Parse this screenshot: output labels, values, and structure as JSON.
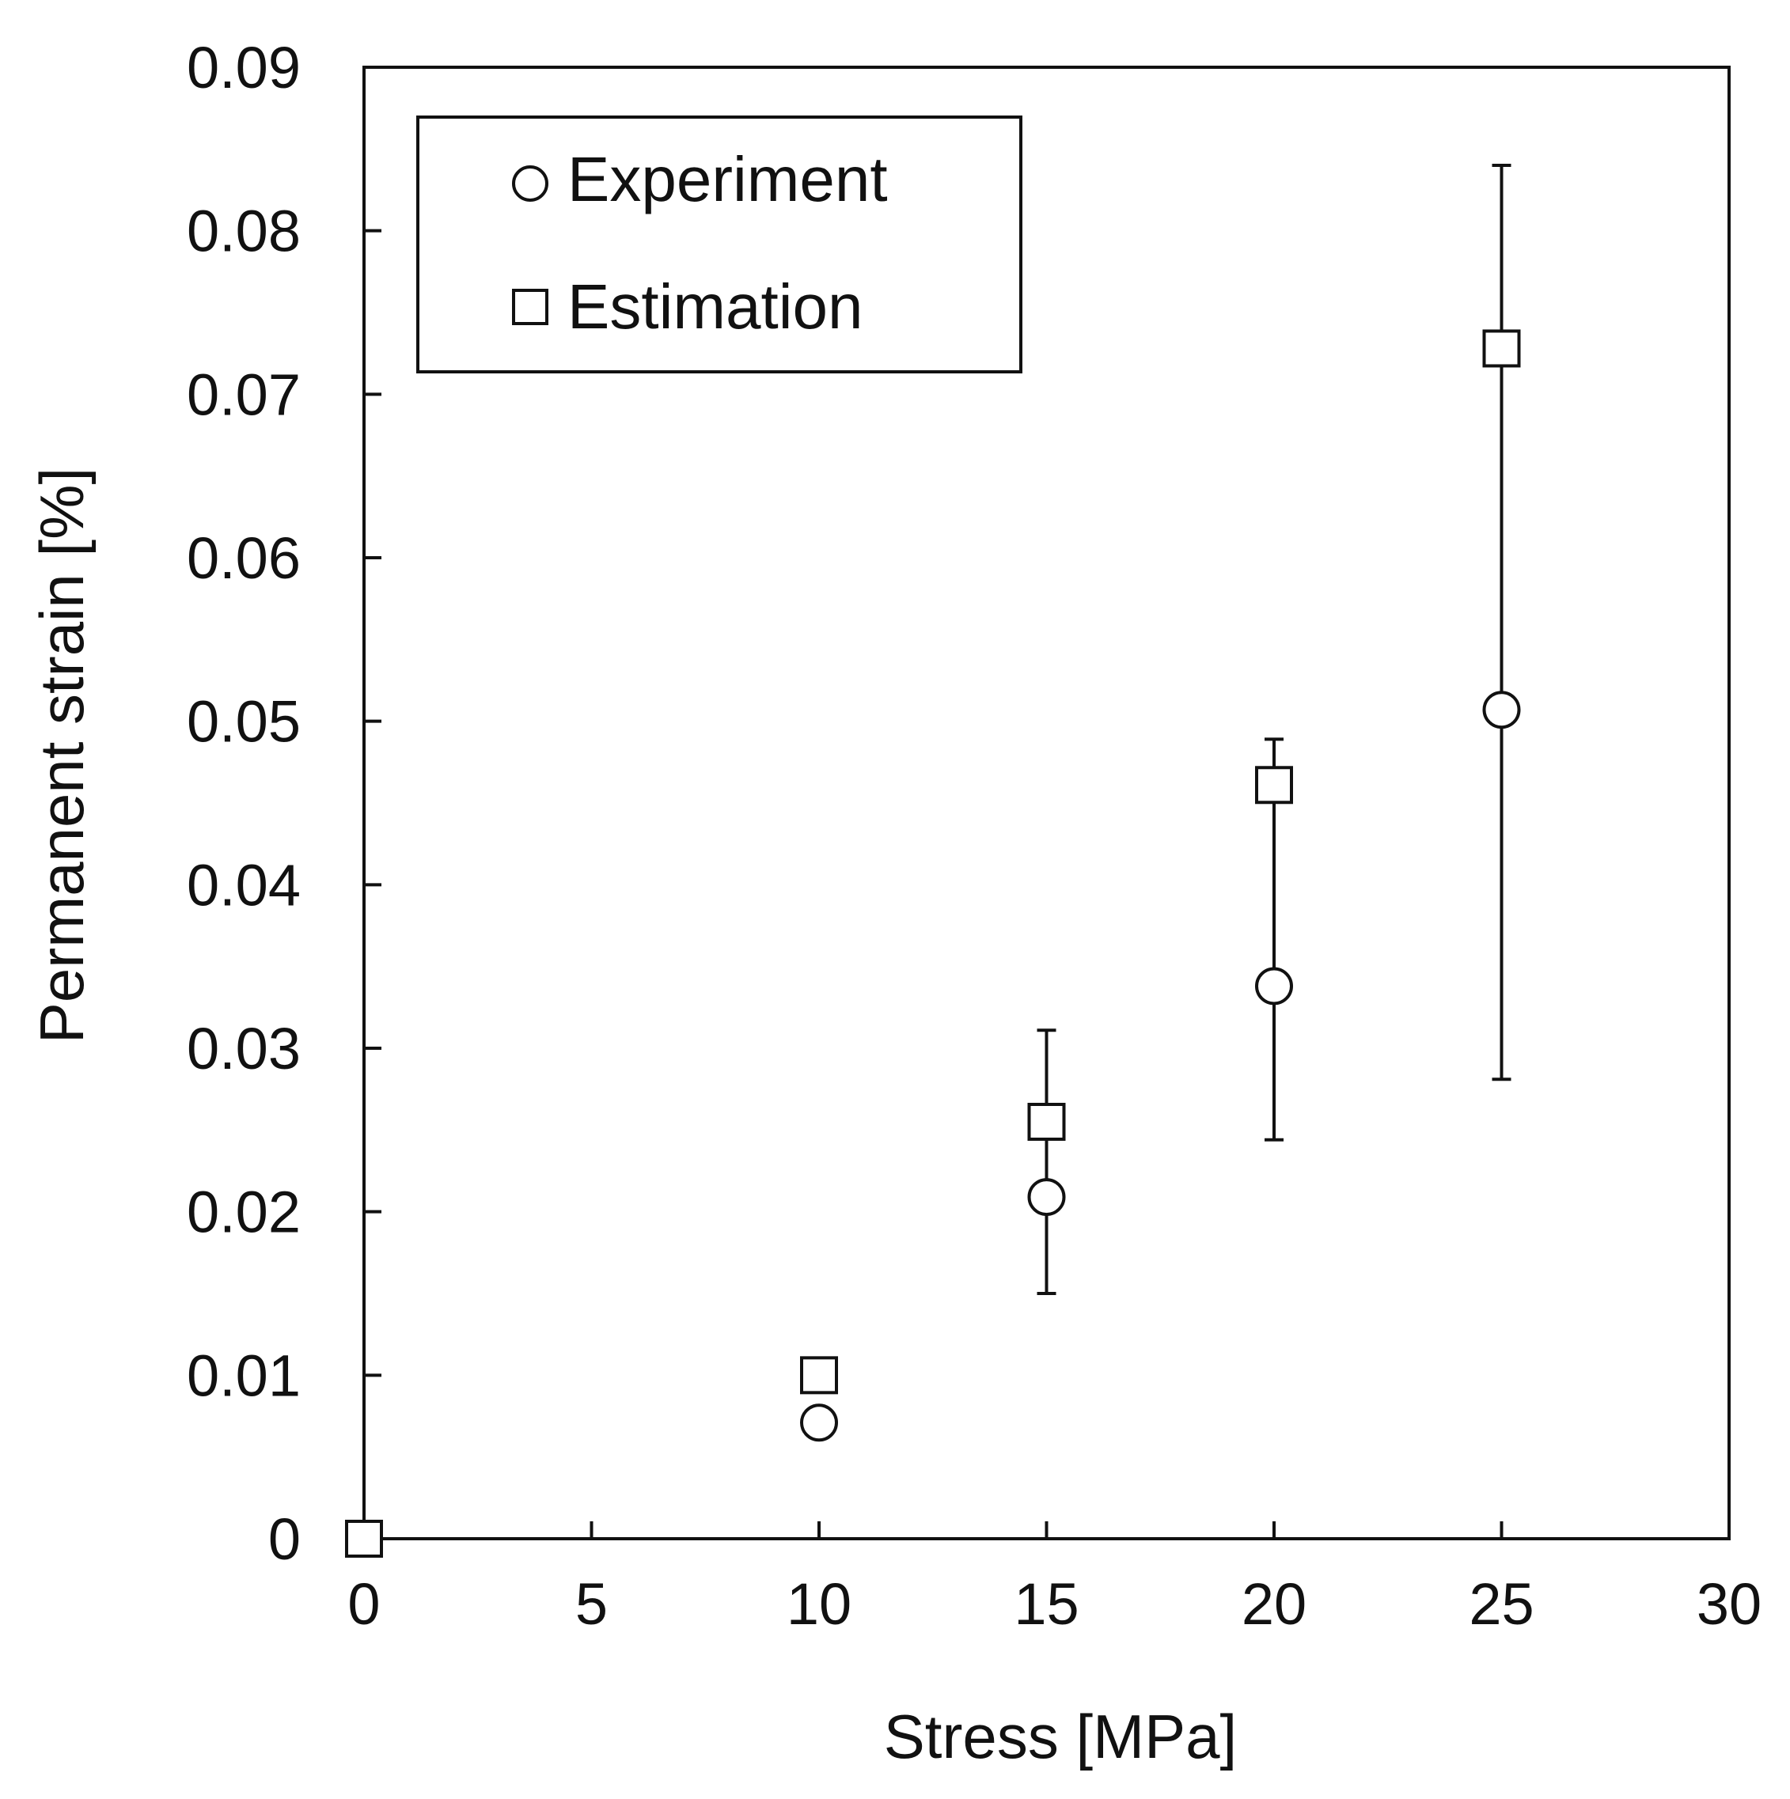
{
  "chart_data": {
    "type": "scatter",
    "xlabel": "Stress [MPa]",
    "ylabel": "Permanent strain [%]",
    "xlim": [
      0,
      30
    ],
    "ylim": [
      0,
      0.09
    ],
    "x_ticks": [
      0,
      5,
      10,
      15,
      20,
      25,
      30
    ],
    "x_tick_labels": [
      "0",
      "5",
      "10",
      "15",
      "20",
      "25",
      "30"
    ],
    "y_ticks": [
      0,
      0.01,
      0.02,
      0.03,
      0.04,
      0.05,
      0.06,
      0.07,
      0.08,
      0.09
    ],
    "y_tick_labels": [
      "0",
      "0.01",
      "0.02",
      "0.03",
      "0.04",
      "0.05",
      "0.06",
      "0.07",
      "0.08",
      "0.09"
    ],
    "grid": false,
    "legend_position": "top-left",
    "series": [
      {
        "name": "Experiment",
        "marker": "circle",
        "x": [
          0,
          10,
          15,
          20,
          25
        ],
        "y": [
          0,
          0.0071,
          0.0209,
          0.0338,
          0.0507
        ],
        "error_low": [
          null,
          null,
          0.015,
          0.0244,
          0.0281
        ],
        "error_high": [
          null,
          null,
          0.0311,
          0.0489,
          0.084
        ]
      },
      {
        "name": "Estimation",
        "marker": "square",
        "x": [
          0,
          10,
          15,
          20,
          25
        ],
        "y": [
          0,
          0.01,
          0.0255,
          0.0461,
          0.0728
        ]
      }
    ]
  },
  "colors": {
    "axis": "#111111",
    "marker_fill": "#ffffff",
    "background": "#ffffff"
  }
}
